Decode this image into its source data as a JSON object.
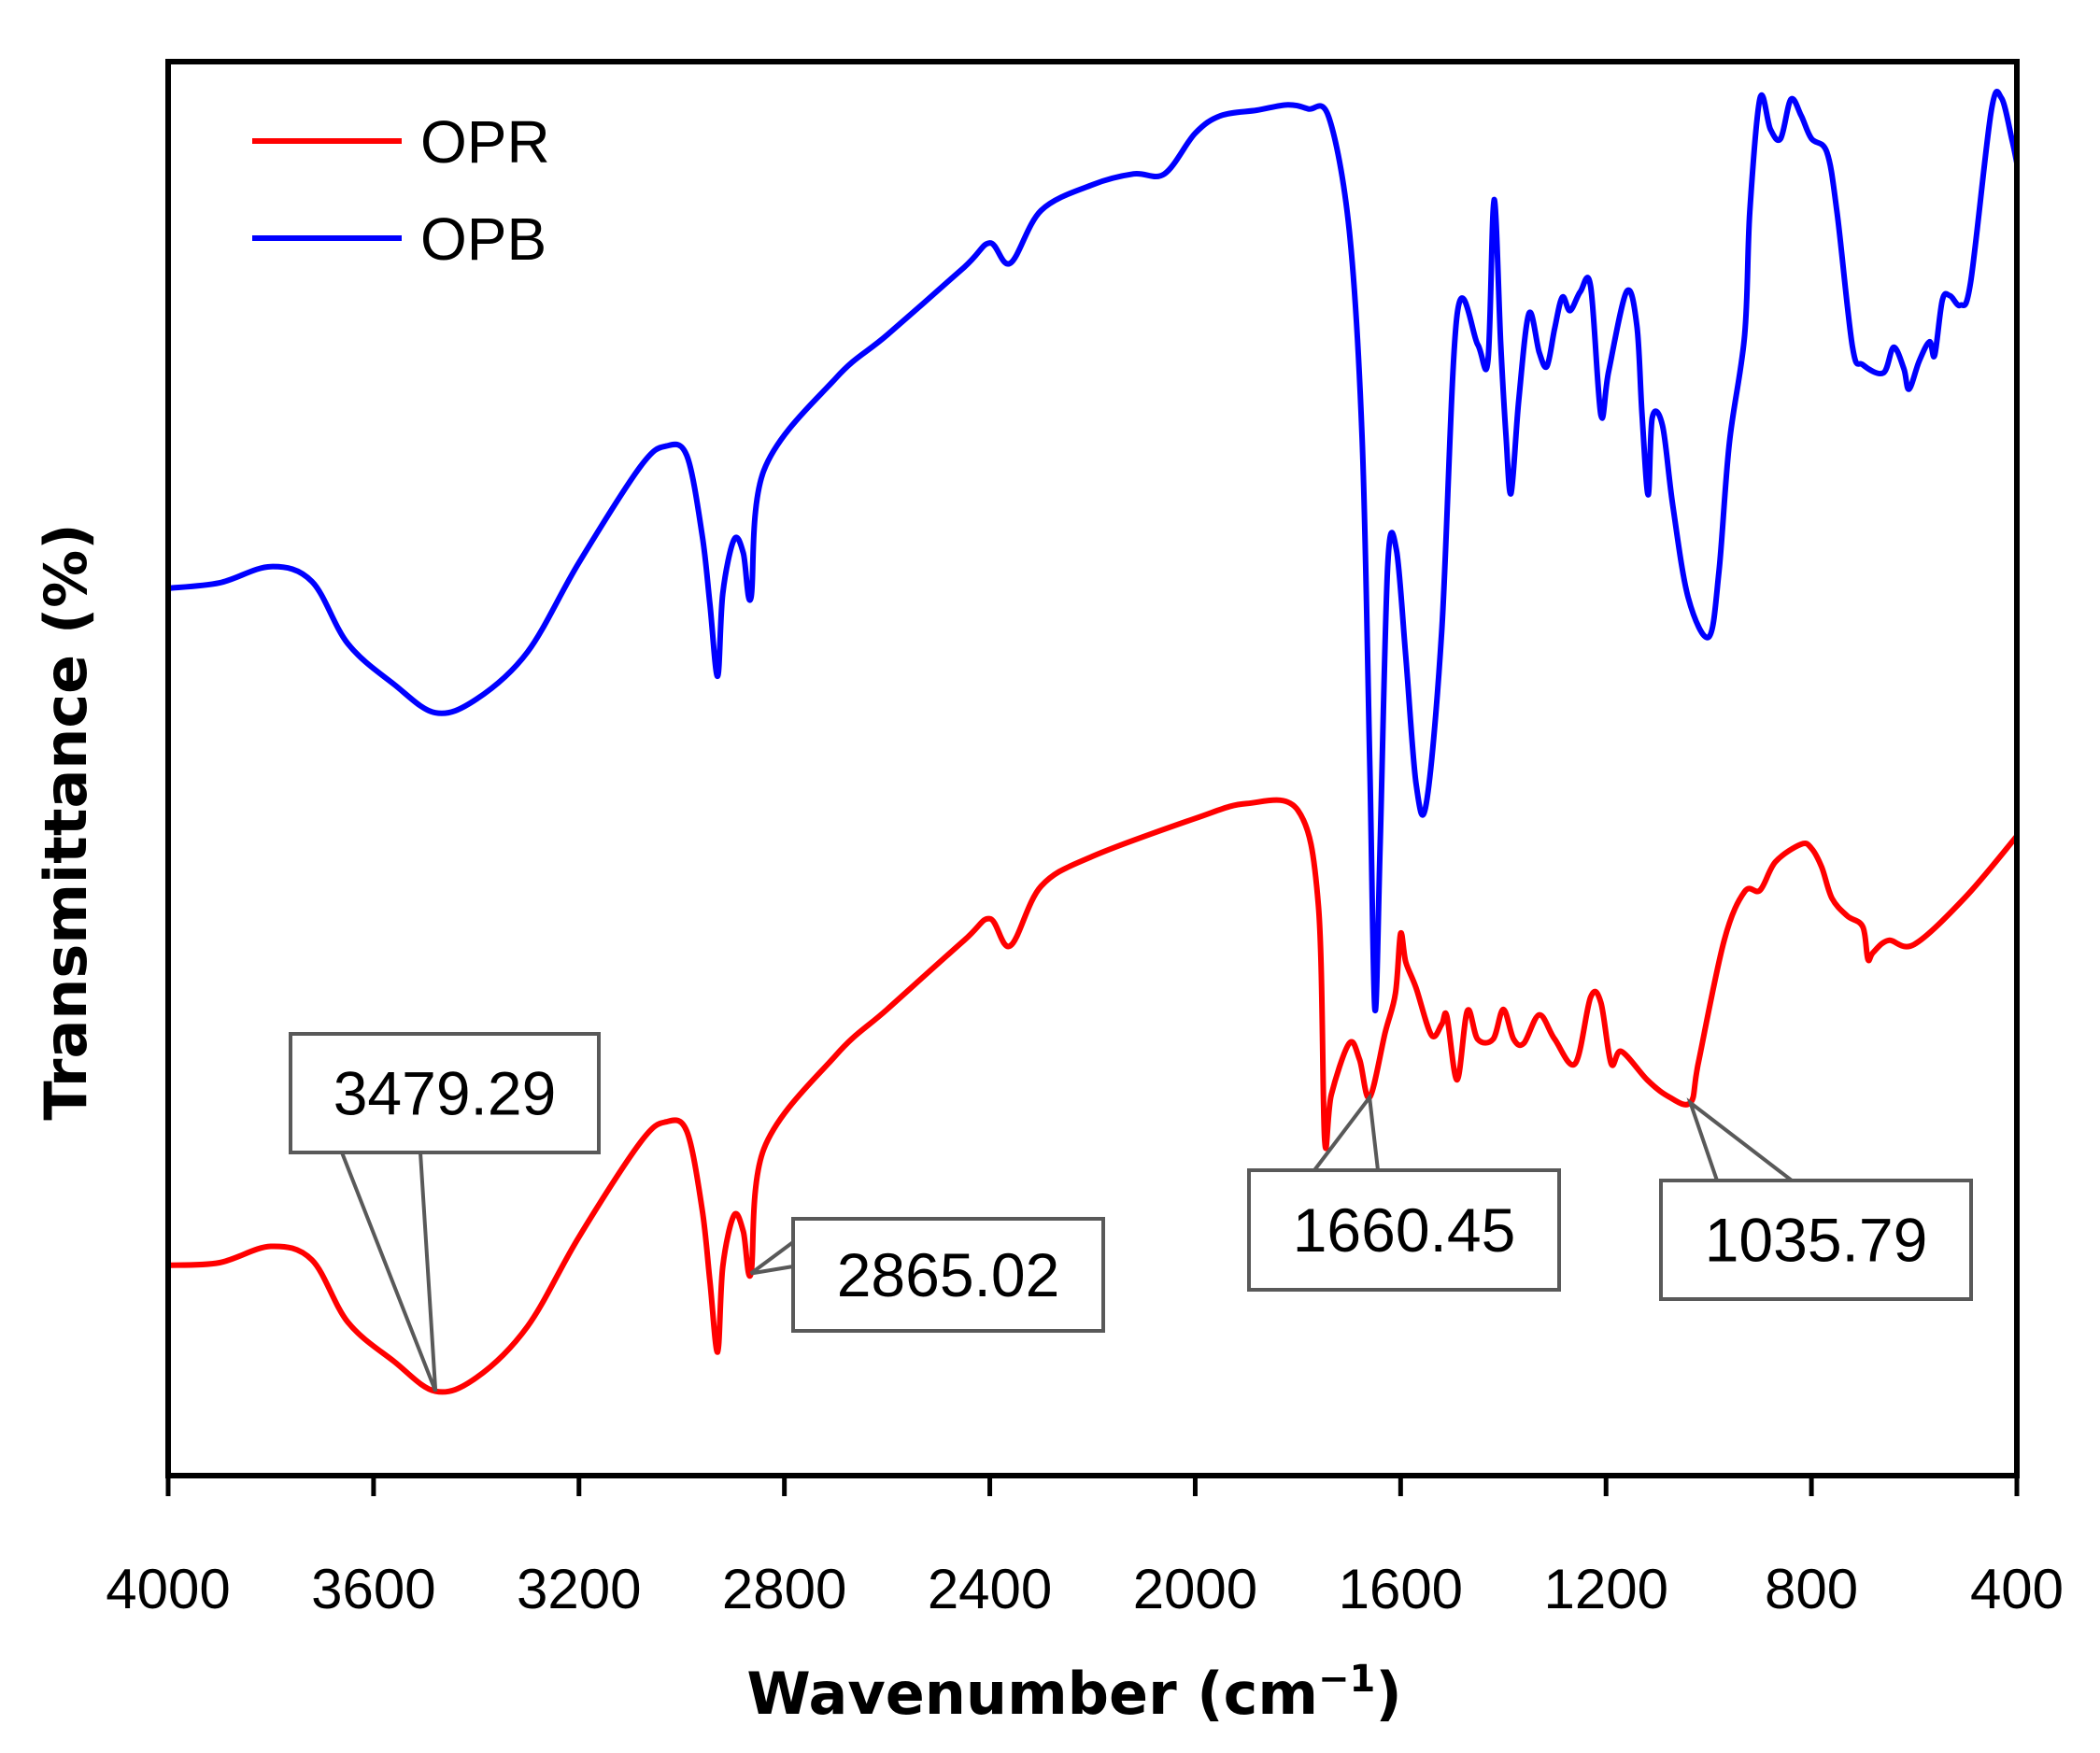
{
  "chart_data": {
    "type": "line",
    "title": "",
    "xlabel": "Wavenumber (cm",
    "xlabel_sup": "−1",
    "xlabel_close": ")",
    "ylabel": "Transmittance (%)",
    "xlim": [
      4000,
      400
    ],
    "x_reversed": true,
    "ylim": [
      0,
      100
    ],
    "y_ticks_shown": false,
    "grid": false,
    "legend_position": "top-left",
    "x_ticks": [
      "4000",
      "3600",
      "3200",
      "2800",
      "2400",
      "2000",
      "1600",
      "1200",
      "800",
      "400"
    ],
    "series": [
      {
        "name": "OPR",
        "color": "#ff0000",
        "points": [
          [
            4000,
            14.7
          ],
          [
            3900,
            14.9
          ],
          [
            3800,
            16.1
          ],
          [
            3720,
            15.1
          ],
          [
            3650,
            10.5
          ],
          [
            3560,
            7.6
          ],
          [
            3479.29,
            5.4
          ],
          [
            3400,
            6.4
          ],
          [
            3300,
            10.2
          ],
          [
            3200,
            16.8
          ],
          [
            3080,
            23.8
          ],
          [
            3030,
            25.3
          ],
          [
            2990,
            24.6
          ],
          [
            2960,
            18.8
          ],
          [
            2945,
            13.5
          ],
          [
            2930,
            8.3
          ],
          [
            2920,
            14.6
          ],
          [
            2898,
            18.4
          ],
          [
            2880,
            17.2
          ],
          [
            2865.02,
            14.1
          ],
          [
            2840,
            23.3
          ],
          [
            2700,
            30.2
          ],
          [
            2600,
            33.6
          ],
          [
            2450,
            38.7
          ],
          [
            2400,
            40.3
          ],
          [
            2360,
            38.3
          ],
          [
            2300,
            42.7
          ],
          [
            2200,
            44.9
          ],
          [
            2000,
            47.7
          ],
          [
            1900,
            48.8
          ],
          [
            1800,
            48.3
          ],
          [
            1760,
            41.2
          ],
          [
            1748,
            24.0
          ],
          [
            1735,
            27.3
          ],
          [
            1700,
            31.1
          ],
          [
            1680,
            29.9
          ],
          [
            1660.45,
            27.1
          ],
          [
            1630,
            31.9
          ],
          [
            1610,
            34.8
          ],
          [
            1600,
            39.2
          ],
          [
            1590,
            37.1
          ],
          [
            1570,
            35.2
          ],
          [
            1540,
            31.7
          ],
          [
            1520,
            32.5
          ],
          [
            1510,
            33.1
          ],
          [
            1490,
            28.4
          ],
          [
            1470,
            33.5
          ],
          [
            1450,
            31.4
          ],
          [
            1420,
            31.4
          ],
          [
            1400,
            33.6
          ],
          [
            1380,
            31.4
          ],
          [
            1360,
            31.1
          ],
          [
            1330,
            33.2
          ],
          [
            1300,
            31.4
          ],
          [
            1260,
            29.6
          ],
          [
            1230,
            34.5
          ],
          [
            1210,
            34.1
          ],
          [
            1190,
            29.6
          ],
          [
            1170,
            30.5
          ],
          [
            1120,
            28.4
          ],
          [
            1080,
            27.2
          ],
          [
            1035.79,
            26.7
          ],
          [
            1020,
            29.7
          ],
          [
            970,
            38.7
          ],
          [
            930,
            42.3
          ],
          [
            900,
            42.4
          ],
          [
            870,
            44.5
          ],
          [
            820,
            45.8
          ],
          [
            800,
            45.5
          ],
          [
            780,
            44.1
          ],
          [
            760,
            41.8
          ],
          [
            730,
            40.5
          ],
          [
            700,
            39.7
          ],
          [
            690,
            37.3
          ],
          [
            680,
            37.8
          ],
          [
            650,
            38.7
          ],
          [
            600,
            38.4
          ],
          [
            500,
            41.9
          ],
          [
            400,
            46.4
          ]
        ]
      },
      {
        "name": "OPB",
        "color": "#0000ff",
        "points": [
          [
            4000,
            64.7
          ],
          [
            3900,
            65.1
          ],
          [
            3800,
            66.3
          ],
          [
            3720,
            65.2
          ],
          [
            3650,
            60.6
          ],
          [
            3560,
            57.6
          ],
          [
            3479.29,
            55.5
          ],
          [
            3400,
            56.5
          ],
          [
            3300,
            60.0
          ],
          [
            3200,
            66.6
          ],
          [
            3080,
            73.7
          ],
          [
            3030,
            75.2
          ],
          [
            2990,
            74.5
          ],
          [
            2960,
            68.6
          ],
          [
            2945,
            63.5
          ],
          [
            2930,
            58.2
          ],
          [
            2920,
            64.3
          ],
          [
            2898,
            68.3
          ],
          [
            2880,
            67.3
          ],
          [
            2865.02,
            64.0
          ],
          [
            2840,
            73.4
          ],
          [
            2700,
            80.2
          ],
          [
            2600,
            83.4
          ],
          [
            2450,
            88.4
          ],
          [
            2400,
            90.2
          ],
          [
            2360,
            88.7
          ],
          [
            2300,
            92.6
          ],
          [
            2200,
            94.5
          ],
          [
            2120,
            95.3
          ],
          [
            2060,
            95.3
          ],
          [
            2000,
            98.3
          ],
          [
            1950,
            99.6
          ],
          [
            1880,
            100.0
          ],
          [
            1820,
            100.4
          ],
          [
            1780,
            100.1
          ],
          [
            1740,
            99.5
          ],
          [
            1700,
            91.1
          ],
          [
            1675,
            75.8
          ],
          [
            1660,
            51.5
          ],
          [
            1650,
            33.6
          ],
          [
            1640,
            45.5
          ],
          [
            1625,
            66.5
          ],
          [
            1608,
            67.5
          ],
          [
            1590,
            59.7
          ],
          [
            1570,
            50.3
          ],
          [
            1550,
            48.8
          ],
          [
            1520,
            61.5
          ],
          [
            1490,
            84.9
          ],
          [
            1450,
            82.7
          ],
          [
            1430,
            81.5
          ],
          [
            1418,
            93.4
          ],
          [
            1405,
            82.7
          ],
          [
            1395,
            76.1
          ],
          [
            1385,
            71.7
          ],
          [
            1370,
            78.6
          ],
          [
            1350,
            85.0
          ],
          [
            1330,
            82.1
          ],
          [
            1315,
            81.1
          ],
          [
            1300,
            83.9
          ],
          [
            1285,
            86.2
          ],
          [
            1270,
            85.2
          ],
          [
            1250,
            86.6
          ],
          [
            1230,
            87.0
          ],
          [
            1210,
            77.5
          ],
          [
            1195,
            80.7
          ],
          [
            1160,
            86.6
          ],
          [
            1140,
            84.1
          ],
          [
            1130,
            77.6
          ],
          [
            1118,
            71.6
          ],
          [
            1110,
            77.3
          ],
          [
            1090,
            76.7
          ],
          [
            1070,
            70.8
          ],
          [
            1040,
            64.0
          ],
          [
            1000,
            61.1
          ],
          [
            980,
            66.0
          ],
          [
            960,
            75.4
          ],
          [
            930,
            83.4
          ],
          [
            920,
            92.5
          ],
          [
            900,
            100.9
          ],
          [
            880,
            98.6
          ],
          [
            860,
            97.9
          ],
          [
            840,
            100.8
          ],
          [
            820,
            99.6
          ],
          [
            800,
            97.9
          ],
          [
            770,
            96.9
          ],
          [
            750,
            92.4
          ],
          [
            720,
            82.5
          ],
          [
            700,
            81.2
          ],
          [
            660,
            80.6
          ],
          [
            640,
            82.5
          ],
          [
            620,
            80.9
          ],
          [
            610,
            79.4
          ],
          [
            590,
            81.5
          ],
          [
            570,
            82.9
          ],
          [
            560,
            81.9
          ],
          [
            545,
            86.0
          ],
          [
            530,
            86.3
          ],
          [
            510,
            85.6
          ],
          [
            490,
            87.3
          ],
          [
            450,
            99.9
          ],
          [
            430,
            100.9
          ],
          [
            410,
            97.9
          ],
          [
            400,
            96.1
          ]
        ]
      }
    ],
    "annotations": [
      {
        "label": "3479.29",
        "x": 3479.29,
        "series": "OPR"
      },
      {
        "label": "2865.02",
        "x": 2865.02,
        "series": "OPR"
      },
      {
        "label": "1660.45",
        "x": 1660.45,
        "series": "OPR"
      },
      {
        "label": "1035.79",
        "x": 1035.79,
        "series": "OPR"
      }
    ]
  }
}
